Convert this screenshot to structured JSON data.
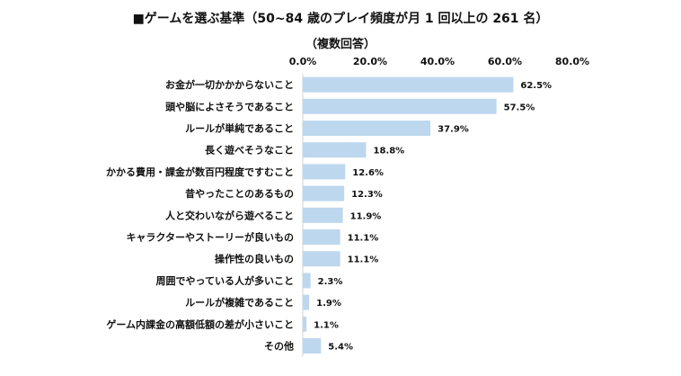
{
  "chart_data": {
    "type": "bar",
    "orientation": "horizontal",
    "title": "■ゲームを選ぶ基準（50~84 歳のプレイ頻度が月 1 回以上の 261 名）",
    "subtitle": "（複数回答）",
    "xlim": [
      0,
      80
    ],
    "xticks": [
      "0.0%",
      "20.0%",
      "40.0%",
      "60.0%",
      "80.0%"
    ],
    "grid": false,
    "bar_color": "#bdd7ee",
    "categories": [
      "お金が一切かかからないこと",
      "頭や脳によさそうであること",
      "ルールが単純であること",
      "長く遊べそうなこと",
      "かかる費用・課金が数百円程度ですむこと",
      "昔やったことのあるもの",
      "人と交わいながら遊べること",
      "キャラクターやストーリーが良いもの",
      "操作性の良いもの",
      "周囲でやっている人が多いこと",
      "ルールが複雑であること",
      "ゲーム内課金の高額低額の差が小さいこと",
      "その他"
    ],
    "values": [
      62.5,
      57.5,
      37.9,
      18.8,
      12.6,
      12.3,
      11.9,
      11.1,
      11.1,
      2.3,
      1.9,
      1.1,
      5.4
    ],
    "labels": [
      "62.5%",
      "57.5%",
      "37.9%",
      "18.8%",
      "12.6%",
      "12.3%",
      "11.9%",
      "11.1%",
      "11.1%",
      "2.3%",
      "1.9%",
      "1.1%",
      "5.4%"
    ]
  }
}
